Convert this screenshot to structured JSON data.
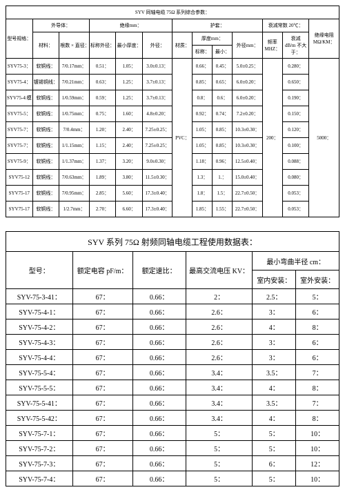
{
  "table1": {
    "title": "SYV 同轴电缆 75Ω 系列综合参数：",
    "headers": {
      "model": "型号规格：",
      "outer_conductor": "外导体：",
      "insulation": "绝缘mm：",
      "sheath": "护套：",
      "attenuation": "衰减常数 20℃：",
      "insulation_res": "绝缘电阻",
      "material": "材料：",
      "strand_diam": "根数 × 直径：",
      "nom_od": "标称外径：",
      "min_thick": "最小厚度：",
      "od": "外径：",
      "material2": "材质：",
      "thickness": "厚度mm：",
      "od2": "外径mm：",
      "freq": "频率",
      "atten": "衰减",
      "nominal": "标称：",
      "min": "最小：",
      "mhz": "MHZ：",
      "db": "dB/m 不大于：",
      "mohm": "MΩ/KM："
    },
    "rows": [
      {
        "m": "SYV75-3：",
        "mat": "软铜线：",
        "sd": "7/0.17mm：",
        "nod": "0.51：",
        "mt": "1.05：",
        "od": "3.0±0.13：",
        "th_n": "0.66：",
        "th_m": "0.45：",
        "od2": "5.0±0.25：",
        "att": "0.280："
      },
      {
        "m": "SYV75-4：",
        "mat": "镀锡铜线：",
        "sd": "7/0.21mm：",
        "nod": "0.63：",
        "mt": "1.25：",
        "od": "3.7±0.13：",
        "th_n": "0.85：",
        "th_m": "0.65：",
        "od2": "6.0±0.20：",
        "att": "0.650："
      },
      {
        "m": "SYV75-4:模：",
        "mat": "软铜线：",
        "sd": "1/0.59mm：",
        "nod": "0.59：",
        "mt": "1.25：",
        "od": "3.7±0.13：",
        "th_n": "0.8：",
        "th_m": "0.6：",
        "od2": "6.0±0.20：",
        "att": "0.190："
      },
      {
        "m": "SYV75-5：",
        "mat": "软铜线：",
        "sd": "1/0.75mm：",
        "nod": "0.75：",
        "mt": "1.60：",
        "od": "4.8±0.20：",
        "th_n": "0.92：",
        "th_m": "0.74：",
        "od2": "7.2±0.20：",
        "att": "0.150："
      },
      {
        "m": "SYV75-7：",
        "mat": "软铜线：",
        "sd": "7/0.4mm：",
        "nod": "1.20：",
        "mt": "2.40：",
        "od": "7.25±0.25：",
        "th_n": "1.05：",
        "th_m": "0.85：",
        "od2": "10.3±0.30：",
        "att": "0.120："
      },
      {
        "m": "SYV75-7：",
        "mat": "软铜线：",
        "sd": "1/1.15mm：",
        "nod": "1.15：",
        "mt": "2.40：",
        "od": "7.25±0.25：",
        "th_n": "1.05：",
        "th_m": "0.85：",
        "od2": "10.3±0.30：",
        "att": "0.100："
      },
      {
        "m": "SYV75-9：",
        "mat": "软铜线：",
        "sd": "1/1.37mm：",
        "nod": "1.37：",
        "mt": "3.20：",
        "od": "9.0±0.30：",
        "th_n": "1.18：",
        "th_m": "0.96：",
        "od2": "12.5±0.40：",
        "att": "0.088："
      },
      {
        "m": "SYV75-12",
        "mat": "软铜线：",
        "sd": "7/0.63mm：",
        "nod": "1.89：",
        "mt": "3.80：",
        "od": "11.5±0.30：",
        "th_n": "1.3：",
        "th_m": "1.：",
        "od2": "15.0±0.40：",
        "att": "0.080："
      },
      {
        "m": "SYV75-17",
        "mat": "软铜线：",
        "sd": "7/0.95mm：",
        "nod": "2.85：",
        "mt": "5.60：",
        "od": "17.3±0.40：",
        "th_n": "1.8：",
        "th_m": "1.5：",
        "od2": "22.7±0.50：",
        "att": "0.053："
      },
      {
        "m": "SYV75-17",
        "mat": "软铜线：",
        "sd": "1/2.7mm：",
        "nod": "2.70：",
        "mt": "6.60：",
        "od": "17.3±0.40：",
        "th_n": "1.85：",
        "th_m": "1.55：",
        "od2": "22.7±0.50：",
        "att": "0.053："
      }
    ],
    "pvc": "PVC：",
    "freq_val": "200：",
    "res_val": "5000："
  },
  "table2": {
    "title": "SYV 系列 75Ω 射频同轴电缆工程使用数据表：",
    "headers": {
      "model": "型号：",
      "cap": "额定电容 pF/m：",
      "vel": "额定速比：",
      "volt": "最高交流电压 KV：",
      "bend": "最小弯曲半径 cm：",
      "indoor": "室内安装：",
      "outdoor": "室外安装："
    },
    "rows": [
      {
        "m": "SYV-75-3-41：",
        "c": "67：",
        "v": "0.66：",
        "kv": "2：",
        "in": "2.5：",
        "out": "5："
      },
      {
        "m": "SYV-75-4-1：",
        "c": "67：",
        "v": "0.66：",
        "kv": "2.6：",
        "in": "3：",
        "out": "6："
      },
      {
        "m": "SYV-75-4-2：",
        "c": "67：",
        "v": "0.66：",
        "kv": "2.6：",
        "in": "4：",
        "out": "8："
      },
      {
        "m": "SYV-75-4-3：",
        "c": "67：",
        "v": "0.66：",
        "kv": "2.6：",
        "in": "3：",
        "out": "6："
      },
      {
        "m": "SYV-75-4-4：",
        "c": "67：",
        "v": "0.66：",
        "kv": "2.6：",
        "in": "3：",
        "out": "6："
      },
      {
        "m": "SYV-75-5-4：",
        "c": "67：",
        "v": "0.66：",
        "kv": "3.4：",
        "in": "3.5：",
        "out": "7："
      },
      {
        "m": "SYV-75-5-5：",
        "c": "67：",
        "v": "0.66：",
        "kv": "3.4：",
        "in": "4：",
        "out": "8："
      },
      {
        "m": "SYV-75-5-41：",
        "c": "67：",
        "v": "0.66：",
        "kv": "3.4：",
        "in": "3.5：",
        "out": "7："
      },
      {
        "m": "SYV-75-5-42：",
        "c": "67：",
        "v": "0.66：",
        "kv": "3.4：",
        "in": "4：",
        "out": "8："
      },
      {
        "m": "SYV-75-7-1：",
        "c": "67：",
        "v": "0.66：",
        "kv": "5：",
        "in": "5：",
        "out": "10："
      },
      {
        "m": "SYV-75-7-2：",
        "c": "67：",
        "v": "0.66：",
        "kv": "5：",
        "in": "5：",
        "out": "10："
      },
      {
        "m": "SYV-75-7-3：",
        "c": "67：",
        "v": "0.66：",
        "kv": "5：",
        "in": "6：",
        "out": "12："
      },
      {
        "m": "SYV-75-7-4：",
        "c": "67：",
        "v": "0.66：",
        "kv": "5：",
        "in": "5：",
        "out": "10："
      }
    ]
  }
}
